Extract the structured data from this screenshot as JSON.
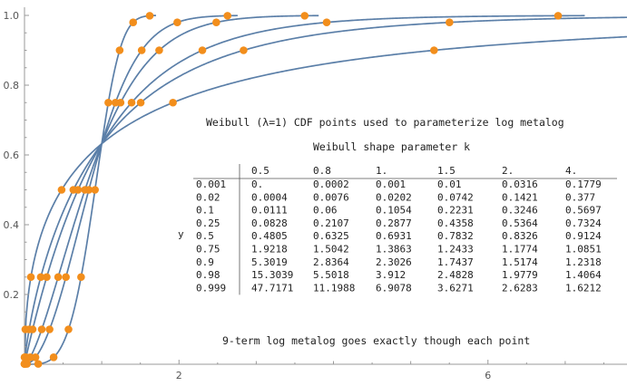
{
  "chart_data": {
    "type": "line",
    "annotation_title": "Weibull (λ=1) CDF points used to parameterize log metalog",
    "table_title": "Weibull shape parameter k",
    "footnote": "9-term log metalog goes exactly though each point",
    "xlim": [
      0,
      7.8
    ],
    "ylim": [
      0,
      1.0
    ],
    "x_ticks": [
      "2",
      "6"
    ],
    "x_tick_values": [
      2,
      6
    ],
    "y_ticks": [
      "0.2",
      "0.4",
      "0.6",
      "0.8",
      "1.0"
    ],
    "y_tick_values": [
      0.2,
      0.4,
      0.6,
      0.8,
      1.0
    ],
    "grid": false,
    "line_color": "#5b7fa8",
    "point_color": "#f28e1c",
    "y_points": [
      "0.001",
      "0.02",
      "0.1",
      "0.25",
      "0.5",
      "0.75",
      "0.9",
      "0.98",
      "0.999"
    ],
    "y_label": "y",
    "y_values": [
      0.001,
      0.02,
      0.1,
      0.25,
      0.5,
      0.75,
      0.9,
      0.98,
      0.999
    ],
    "shape_labels": [
      "0.5",
      "0.8",
      "1.",
      "1.5",
      "2.",
      "4."
    ],
    "shape_values": [
      0.5,
      0.8,
      1,
      1.5,
      2,
      4
    ],
    "table_rows": [
      [
        "0.",
        "0.0002",
        "0.001",
        "0.01",
        "0.0316",
        "0.1779"
      ],
      [
        "0.0004",
        "0.0076",
        "0.0202",
        "0.0742",
        "0.1421",
        "0.377"
      ],
      [
        "0.0111",
        "0.06",
        "0.1054",
        "0.2231",
        "0.3246",
        "0.5697"
      ],
      [
        "0.0828",
        "0.2107",
        "0.2877",
        "0.4358",
        "0.5364",
        "0.7324"
      ],
      [
        "0.4805",
        "0.6325",
        "0.6931",
        "0.7832",
        "0.8326",
        "0.9124"
      ],
      [
        "1.9218",
        "1.5042",
        "1.3863",
        "1.2433",
        "1.1774",
        "1.0851"
      ],
      [
        "5.3019",
        "2.8364",
        "2.3026",
        "1.7437",
        "1.5174",
        "1.2318"
      ],
      [
        "15.3039",
        "5.5018",
        "3.912",
        "2.4828",
        "1.9779",
        "1.4064"
      ],
      [
        "47.7171",
        "11.1988",
        "6.9078",
        "3.6271",
        "2.6283",
        "1.6212"
      ]
    ]
  }
}
